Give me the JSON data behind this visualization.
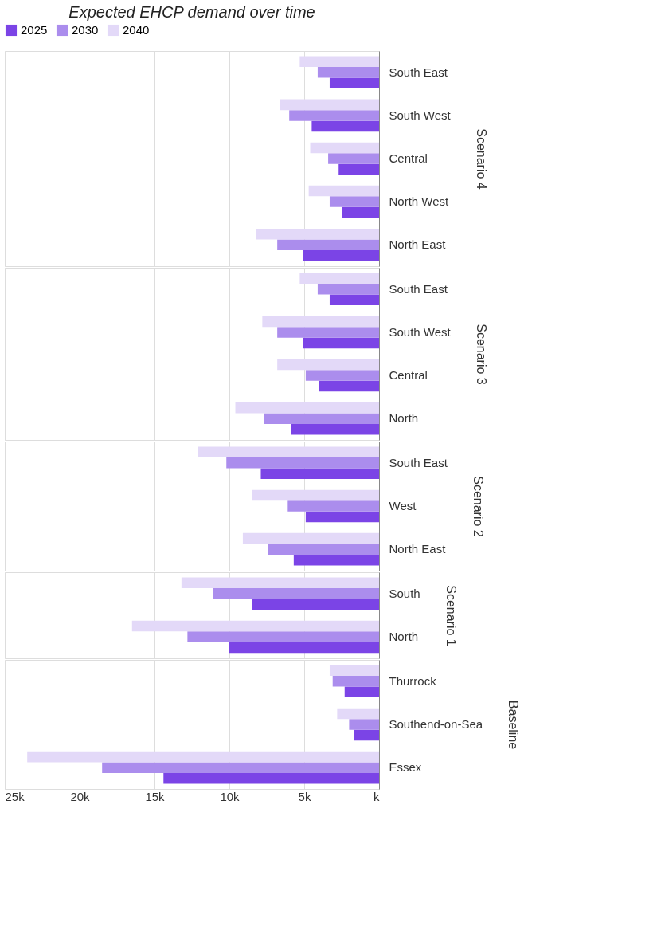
{
  "chart_data": [
    {
      "type": "bar",
      "orientation": "horizontal",
      "title": "Expected EHCP demand over time",
      "ylabel": "Scenario 4",
      "legend": "top",
      "grid": "x",
      "tick_labels": "y",
      "categories": [
        "South East",
        "South West",
        "Central",
        "North West",
        "North East"
      ],
      "xlim": [
        25000,
        0
      ],
      "xticks": [
        {
          "value": 25000,
          "label": null
        },
        {
          "value": 20000,
          "label": null
        },
        {
          "value": 15000,
          "label": null
        },
        {
          "value": 10000,
          "label": null
        },
        {
          "value": 5000,
          "label": null
        },
        {
          "value": 0,
          "label": null
        }
      ],
      "series": [
        {
          "name": "2025",
          "color": "#7b44e6",
          "values": [
            3300,
            4500,
            2700,
            2500,
            5100
          ]
        },
        {
          "name": "2030",
          "color": "#ab8ded",
          "values": [
            4100,
            6000,
            3400,
            3300,
            6800
          ]
        },
        {
          "name": "2040",
          "color": "#e3d9f8",
          "values": [
            5300,
            6600,
            4600,
            4700,
            8200
          ]
        }
      ]
    },
    {
      "type": "bar",
      "orientation": "horizontal",
      "ylabel": "Scenario 3",
      "grid": "x",
      "tick_labels": "y",
      "categories": [
        "South East",
        "South West",
        "Central",
        "North"
      ],
      "xlim": [
        25000,
        0
      ],
      "xticks": [
        {
          "value": 25000,
          "label": null
        },
        {
          "value": 20000,
          "label": null
        },
        {
          "value": 15000,
          "label": null
        },
        {
          "value": 10000,
          "label": null
        },
        {
          "value": 5000,
          "label": null
        },
        {
          "value": 0,
          "label": null
        }
      ],
      "series": [
        {
          "name": "2025",
          "color": "#7b44e6",
          "values": [
            3300,
            5100,
            4000,
            5900
          ]
        },
        {
          "name": "2030",
          "color": "#ab8ded",
          "values": [
            4100,
            6800,
            4900,
            7700
          ]
        },
        {
          "name": "2040",
          "color": "#e3d9f8",
          "values": [
            5300,
            7800,
            6800,
            9600
          ]
        }
      ]
    },
    {
      "type": "bar",
      "orientation": "horizontal",
      "ylabel": "Scenario 2",
      "grid": "x",
      "tick_labels": "y",
      "categories": [
        "South East",
        "West",
        "North East"
      ],
      "xlim": [
        25000,
        0
      ],
      "xticks": [
        {
          "value": 25000,
          "label": null
        },
        {
          "value": 20000,
          "label": null
        },
        {
          "value": 15000,
          "label": null
        },
        {
          "value": 10000,
          "label": null
        },
        {
          "value": 5000,
          "label": null
        },
        {
          "value": 0,
          "label": null
        }
      ],
      "series": [
        {
          "name": "2025",
          "color": "#7b44e6",
          "values": [
            7900,
            4900,
            5700
          ]
        },
        {
          "name": "2030",
          "color": "#ab8ded",
          "values": [
            10200,
            6100,
            7400
          ]
        },
        {
          "name": "2040",
          "color": "#e3d9f8",
          "values": [
            12100,
            8500,
            9100
          ]
        }
      ]
    },
    {
      "type": "bar",
      "orientation": "horizontal",
      "ylabel": "Scenario 1",
      "grid": "x",
      "tick_labels": "y",
      "categories": [
        "South",
        "North"
      ],
      "xlim": [
        25000,
        0
      ],
      "xticks": [
        {
          "value": 25000,
          "label": null
        },
        {
          "value": 20000,
          "label": null
        },
        {
          "value": 15000,
          "label": null
        },
        {
          "value": 10000,
          "label": null
        },
        {
          "value": 5000,
          "label": null
        },
        {
          "value": 0,
          "label": null
        }
      ],
      "series": [
        {
          "name": "2025",
          "color": "#7b44e6",
          "values": [
            8500,
            10000
          ]
        },
        {
          "name": "2030",
          "color": "#ab8ded",
          "values": [
            11100,
            12800
          ]
        },
        {
          "name": "2040",
          "color": "#e3d9f8",
          "values": [
            13200,
            16500
          ]
        }
      ]
    },
    {
      "type": "bar",
      "orientation": "horizontal",
      "ylabel": "Baseline",
      "grid": "x",
      "categories": [
        "Thurrock",
        "Southend-on-Sea",
        "Essex"
      ],
      "xlim": [
        25000,
        0
      ],
      "xticks": [
        {
          "value": 25000,
          "label": "25k"
        },
        {
          "value": 20000,
          "label": "20k"
        },
        {
          "value": 15000,
          "label": "15k"
        },
        {
          "value": 10000,
          "label": "10k"
        },
        {
          "value": 5000,
          "label": "5k"
        },
        {
          "value": 0,
          "label": "k"
        }
      ],
      "series": [
        {
          "name": "2025",
          "color": "#7b44e6",
          "values": [
            2300,
            1700,
            14400
          ]
        },
        {
          "name": "2030",
          "color": "#ab8ded",
          "values": [
            3100,
            2000,
            18500
          ]
        },
        {
          "name": "2040",
          "color": "#e3d9f8",
          "values": [
            3300,
            2800,
            23500
          ]
        }
      ]
    }
  ]
}
